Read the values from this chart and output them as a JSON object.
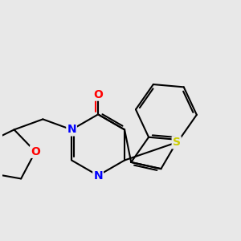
{
  "background_color": "#e8e8e8",
  "bond_color": "#000000",
  "atom_colors": {
    "N": "#0000ff",
    "O": "#ff0000",
    "S": "#cccc00",
    "C": "#000000"
  },
  "figsize": [
    3.0,
    3.0
  ],
  "dpi": 100
}
